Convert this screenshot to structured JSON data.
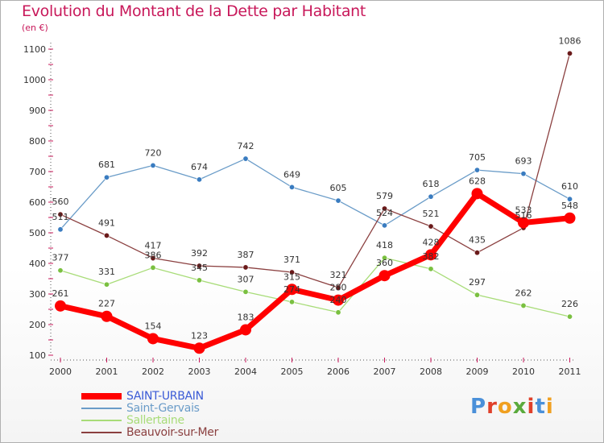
{
  "title": "Evolution du Montant de la Dette par Habitant",
  "subtitle": "(en €)",
  "logo": {
    "text": "Proxiti",
    "colors": [
      "#4a90d9",
      "#e0402a",
      "#f0a020",
      "#5aaa3c",
      "#e0402a",
      "#4a90d9",
      "#f0a020"
    ]
  },
  "chart_data": {
    "type": "line",
    "title": "Evolution du Montant de la Dette par Habitant",
    "subtitle": "(en €)",
    "x": [
      "2000",
      "2001",
      "2002",
      "2003",
      "2004",
      "2005",
      "2006",
      "2007",
      "2008",
      "2009",
      "2010",
      "2011"
    ],
    "ylim": [
      100,
      1100
    ],
    "yticks": [
      100,
      200,
      300,
      400,
      500,
      600,
      700,
      800,
      900,
      1000,
      1100
    ],
    "grid": false,
    "legend_position": "bottom-left",
    "series": [
      {
        "name": "Saint-Gervais",
        "color": "#6a9cc8",
        "marker": "#3a7cc0",
        "values": [
          511,
          681,
          720,
          674,
          742,
          649,
          605,
          524,
          618,
          705,
          693,
          610
        ]
      },
      {
        "name": "Sallertaine",
        "color": "#a8dc78",
        "marker": "#7ac040",
        "values": [
          377,
          331,
          386,
          345,
          307,
          274,
          240,
          418,
          382,
          297,
          262,
          226
        ]
      },
      {
        "name": "Beauvoir-sur-Mer",
        "color": "#8b4040",
        "marker": "#6a1a1a",
        "values": [
          560,
          491,
          417,
          392,
          387,
          371,
          321,
          579,
          521,
          435,
          516,
          1086
        ]
      },
      {
        "name": "SAINT-URBAIN",
        "color": "#ff0000",
        "marker": "#ff0000",
        "values": [
          261,
          227,
          154,
          123,
          183,
          315,
          280,
          360,
          428,
          628,
          533,
          548
        ]
      }
    ],
    "legend_order": [
      "SAINT-URBAIN",
      "Saint-Gervais",
      "Sallertaine",
      "Beauvoir-sur-Mer"
    ]
  }
}
